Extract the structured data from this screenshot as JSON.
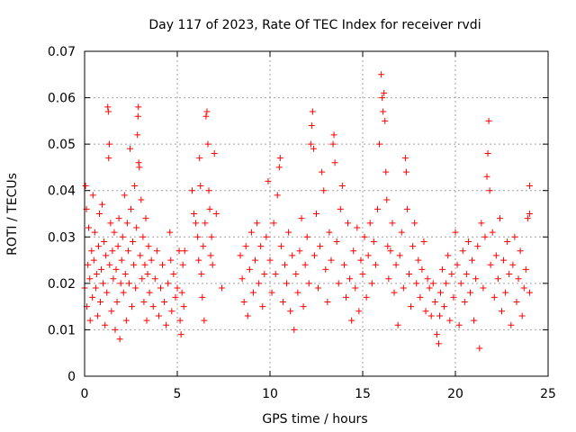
{
  "chart_data": {
    "type": "scatter",
    "title": "Day 117 of 2023, Rate Of TEC Index for receiver rvdi",
    "xlabel": "GPS time / hours",
    "ylabel": "ROTI / TECUs",
    "xlim": [
      0,
      25
    ],
    "ylim": [
      0,
      0.07
    ],
    "xticks": [
      "0",
      "5",
      "10",
      "15",
      "20",
      "25"
    ],
    "yticks": [
      "0",
      "0.01",
      "0.02",
      "0.03",
      "0.04",
      "0.05",
      "0.06",
      "0.07"
    ],
    "grid": true,
    "marker": "plus",
    "marker_color": "#ff0000",
    "series": [
      {
        "points": [
          [
            0.0,
            0.019
          ],
          [
            0.05,
            0.041
          ],
          [
            0.1,
            0.036
          ],
          [
            0.12,
            0.015
          ],
          [
            0.18,
            0.024
          ],
          [
            0.22,
            0.032
          ],
          [
            0.28,
            0.021
          ],
          [
            0.3,
            0.012
          ],
          [
            0.38,
            0.027
          ],
          [
            0.42,
            0.017
          ],
          [
            0.45,
            0.039
          ],
          [
            0.5,
            0.025
          ],
          [
            0.55,
            0.031
          ],
          [
            0.6,
            0.019
          ],
          [
            0.65,
            0.022
          ],
          [
            0.7,
            0.013
          ],
          [
            0.75,
            0.028
          ],
          [
            0.8,
            0.035
          ],
          [
            0.85,
            0.016
          ],
          [
            0.9,
            0.023
          ],
          [
            0.95,
            0.037
          ],
          [
            1.0,
            0.02
          ],
          [
            1.05,
            0.029
          ],
          [
            1.1,
            0.011
          ],
          [
            1.15,
            0.026
          ],
          [
            1.2,
            0.018
          ],
          [
            1.25,
            0.058
          ],
          [
            1.28,
            0.057
          ],
          [
            1.3,
            0.047
          ],
          [
            1.33,
            0.05
          ],
          [
            1.35,
            0.024
          ],
          [
            1.4,
            0.033
          ],
          [
            1.45,
            0.014
          ],
          [
            1.5,
            0.027
          ],
          [
            1.55,
            0.021
          ],
          [
            1.6,
            0.031
          ],
          [
            1.65,
            0.01
          ],
          [
            1.7,
            0.023
          ],
          [
            1.75,
            0.016
          ],
          [
            1.8,
            0.028
          ],
          [
            1.85,
            0.034
          ],
          [
            1.9,
            0.008
          ],
          [
            1.95,
            0.02
          ],
          [
            2.0,
            0.025
          ],
          [
            2.05,
            0.03
          ],
          [
            2.1,
            0.018
          ],
          [
            2.15,
            0.039
          ],
          [
            2.2,
            0.022
          ],
          [
            2.25,
            0.012
          ],
          [
            2.3,
            0.033
          ],
          [
            2.35,
            0.027
          ],
          [
            2.4,
            0.02
          ],
          [
            2.45,
            0.049
          ],
          [
            2.5,
            0.036
          ],
          [
            2.55,
            0.015
          ],
          [
            2.6,
            0.029
          ],
          [
            2.65,
            0.024
          ],
          [
            2.7,
            0.041
          ],
          [
            2.75,
            0.019
          ],
          [
            2.8,
            0.032
          ],
          [
            2.85,
            0.052
          ],
          [
            2.88,
            0.056
          ],
          [
            2.9,
            0.058
          ],
          [
            2.92,
            0.046
          ],
          [
            2.95,
            0.045
          ],
          [
            3.0,
            0.026
          ],
          [
            3.05,
            0.038
          ],
          [
            3.1,
            0.021
          ],
          [
            3.15,
            0.03
          ],
          [
            3.2,
            0.016
          ],
          [
            3.25,
            0.024
          ],
          [
            3.3,
            0.034
          ],
          [
            3.35,
            0.012
          ],
          [
            3.4,
            0.022
          ],
          [
            3.45,
            0.028
          ],
          [
            3.5,
            0.018
          ],
          [
            3.6,
            0.025
          ],
          [
            3.7,
            0.015
          ],
          [
            3.8,
            0.021
          ],
          [
            3.9,
            0.027
          ],
          [
            4.0,
            0.013
          ],
          [
            4.1,
            0.019
          ],
          [
            4.2,
            0.024
          ],
          [
            4.3,
            0.016
          ],
          [
            4.4,
            0.011
          ],
          [
            4.5,
            0.02
          ],
          [
            4.6,
            0.031
          ],
          [
            4.65,
            0.025
          ],
          [
            4.7,
            0.014
          ],
          [
            4.8,
            0.022
          ],
          [
            4.9,
            0.017
          ],
          [
            5.0,
            0.019
          ],
          [
            5.1,
            0.027
          ],
          [
            5.15,
            0.012
          ],
          [
            5.2,
            0.009
          ],
          [
            5.25,
            0.018
          ],
          [
            5.3,
            0.024
          ],
          [
            5.35,
            0.015
          ],
          [
            5.4,
            0.027
          ],
          [
            5.8,
            0.04
          ],
          [
            5.9,
            0.035
          ],
          [
            6.0,
            0.033
          ],
          [
            6.1,
            0.03
          ],
          [
            6.15,
            0.025
          ],
          [
            6.2,
            0.047
          ],
          [
            6.25,
            0.041
          ],
          [
            6.3,
            0.022
          ],
          [
            6.35,
            0.017
          ],
          [
            6.4,
            0.028
          ],
          [
            6.45,
            0.012
          ],
          [
            6.5,
            0.033
          ],
          [
            6.55,
            0.056
          ],
          [
            6.6,
            0.057
          ],
          [
            6.65,
            0.05
          ],
          [
            6.7,
            0.04
          ],
          [
            6.75,
            0.036
          ],
          [
            6.8,
            0.026
          ],
          [
            6.85,
            0.03
          ],
          [
            6.9,
            0.024
          ],
          [
            7.0,
            0.048
          ],
          [
            7.1,
            0.035
          ],
          [
            7.4,
            0.019
          ],
          [
            8.4,
            0.026
          ],
          [
            8.5,
            0.021
          ],
          [
            8.6,
            0.016
          ],
          [
            8.7,
            0.028
          ],
          [
            8.8,
            0.013
          ],
          [
            8.9,
            0.023
          ],
          [
            9.0,
            0.031
          ],
          [
            9.1,
            0.018
          ],
          [
            9.2,
            0.025
          ],
          [
            9.3,
            0.033
          ],
          [
            9.4,
            0.02
          ],
          [
            9.5,
            0.028
          ],
          [
            9.6,
            0.015
          ],
          [
            9.7,
            0.022
          ],
          [
            9.8,
            0.03
          ],
          [
            9.9,
            0.042
          ],
          [
            10.0,
            0.025
          ],
          [
            10.1,
            0.018
          ],
          [
            10.2,
            0.033
          ],
          [
            10.3,
            0.022
          ],
          [
            10.4,
            0.039
          ],
          [
            10.5,
            0.045
          ],
          [
            10.55,
            0.047
          ],
          [
            10.6,
            0.028
          ],
          [
            10.7,
            0.016
          ],
          [
            10.8,
            0.024
          ],
          [
            10.9,
            0.02
          ],
          [
            11.0,
            0.031
          ],
          [
            11.1,
            0.014
          ],
          [
            11.2,
            0.026
          ],
          [
            11.3,
            0.01
          ],
          [
            11.4,
            0.022
          ],
          [
            11.5,
            0.018
          ],
          [
            11.6,
            0.027
          ],
          [
            11.7,
            0.034
          ],
          [
            11.8,
            0.015
          ],
          [
            11.9,
            0.024
          ],
          [
            12.0,
            0.03
          ],
          [
            12.1,
            0.02
          ],
          [
            12.2,
            0.05
          ],
          [
            12.25,
            0.054
          ],
          [
            12.3,
            0.057
          ],
          [
            12.35,
            0.049
          ],
          [
            12.4,
            0.026
          ],
          [
            12.5,
            0.035
          ],
          [
            12.6,
            0.019
          ],
          [
            12.7,
            0.028
          ],
          [
            12.8,
            0.044
          ],
          [
            12.9,
            0.04
          ],
          [
            13.0,
            0.023
          ],
          [
            13.1,
            0.016
          ],
          [
            13.2,
            0.031
          ],
          [
            13.3,
            0.025
          ],
          [
            13.4,
            0.05
          ],
          [
            13.45,
            0.052
          ],
          [
            13.5,
            0.046
          ],
          [
            13.6,
            0.029
          ],
          [
            13.7,
            0.02
          ],
          [
            13.8,
            0.036
          ],
          [
            13.9,
            0.041
          ],
          [
            14.0,
            0.024
          ],
          [
            14.1,
            0.017
          ],
          [
            14.2,
            0.033
          ],
          [
            14.3,
            0.021
          ],
          [
            14.4,
            0.012
          ],
          [
            14.5,
            0.027
          ],
          [
            14.6,
            0.019
          ],
          [
            14.7,
            0.032
          ],
          [
            14.8,
            0.014
          ],
          [
            14.9,
            0.025
          ],
          [
            15.0,
            0.022
          ],
          [
            15.1,
            0.03
          ],
          [
            15.2,
            0.017
          ],
          [
            15.3,
            0.026
          ],
          [
            15.4,
            0.033
          ],
          [
            15.5,
            0.02
          ],
          [
            15.6,
            0.029
          ],
          [
            15.7,
            0.024
          ],
          [
            15.8,
            0.036
          ],
          [
            15.9,
            0.05
          ],
          [
            16.0,
            0.065
          ],
          [
            16.05,
            0.06
          ],
          [
            16.1,
            0.057
          ],
          [
            16.15,
            0.061
          ],
          [
            16.2,
            0.055
          ],
          [
            16.25,
            0.044
          ],
          [
            16.3,
            0.038
          ],
          [
            16.35,
            0.028
          ],
          [
            16.4,
            0.021
          ],
          [
            16.5,
            0.027
          ],
          [
            16.6,
            0.033
          ],
          [
            16.7,
            0.018
          ],
          [
            16.8,
            0.024
          ],
          [
            16.9,
            0.011
          ],
          [
            17.0,
            0.026
          ],
          [
            17.1,
            0.031
          ],
          [
            17.2,
            0.019
          ],
          [
            17.3,
            0.047
          ],
          [
            17.35,
            0.044
          ],
          [
            17.4,
            0.036
          ],
          [
            17.5,
            0.022
          ],
          [
            17.6,
            0.015
          ],
          [
            17.7,
            0.028
          ],
          [
            17.8,
            0.033
          ],
          [
            17.9,
            0.02
          ],
          [
            18.0,
            0.025
          ],
          [
            18.1,
            0.017
          ],
          [
            18.2,
            0.023
          ],
          [
            18.3,
            0.029
          ],
          [
            18.4,
            0.014
          ],
          [
            18.5,
            0.021
          ],
          [
            18.6,
            0.019
          ],
          [
            18.7,
            0.013
          ],
          [
            18.8,
            0.02
          ],
          [
            18.9,
            0.016
          ],
          [
            19.0,
            0.009
          ],
          [
            19.1,
            0.007
          ],
          [
            19.15,
            0.013
          ],
          [
            19.2,
            0.018
          ],
          [
            19.3,
            0.023
          ],
          [
            19.4,
            0.015
          ],
          [
            19.5,
            0.02
          ],
          [
            19.6,
            0.026
          ],
          [
            19.7,
            0.012
          ],
          [
            19.8,
            0.022
          ],
          [
            19.9,
            0.017
          ],
          [
            20.0,
            0.031
          ],
          [
            20.1,
            0.024
          ],
          [
            20.2,
            0.011
          ],
          [
            20.3,
            0.02
          ],
          [
            20.4,
            0.027
          ],
          [
            20.5,
            0.016
          ],
          [
            20.6,
            0.022
          ],
          [
            20.7,
            0.029
          ],
          [
            20.8,
            0.018
          ],
          [
            20.9,
            0.025
          ],
          [
            21.0,
            0.012
          ],
          [
            21.1,
            0.021
          ],
          [
            21.2,
            0.028
          ],
          [
            21.3,
            0.006
          ],
          [
            21.4,
            0.033
          ],
          [
            21.5,
            0.019
          ],
          [
            21.6,
            0.03
          ],
          [
            21.7,
            0.043
          ],
          [
            21.75,
            0.048
          ],
          [
            21.8,
            0.055
          ],
          [
            21.85,
            0.04
          ],
          [
            21.9,
            0.024
          ],
          [
            22.0,
            0.031
          ],
          [
            22.1,
            0.017
          ],
          [
            22.2,
            0.026
          ],
          [
            22.3,
            0.021
          ],
          [
            22.4,
            0.034
          ],
          [
            22.5,
            0.014
          ],
          [
            22.6,
            0.025
          ],
          [
            22.7,
            0.018
          ],
          [
            22.8,
            0.029
          ],
          [
            22.9,
            0.022
          ],
          [
            23.0,
            0.011
          ],
          [
            23.1,
            0.024
          ],
          [
            23.2,
            0.03
          ],
          [
            23.3,
            0.016
          ],
          [
            23.4,
            0.021
          ],
          [
            23.5,
            0.027
          ],
          [
            23.6,
            0.013
          ],
          [
            23.7,
            0.019
          ],
          [
            23.8,
            0.023
          ],
          [
            23.9,
            0.034
          ],
          [
            24.0,
            0.041
          ],
          [
            24.0,
            0.035
          ],
          [
            24.0,
            0.018
          ]
        ]
      }
    ]
  }
}
